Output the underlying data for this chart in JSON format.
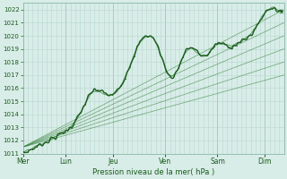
{
  "title": "",
  "xlabel": "Pression niveau de la mer( hPa )",
  "bg_color": "#d8ece8",
  "plot_bg_color": "#d8ece8",
  "grid_color": "#b8d8d0",
  "line_color_dark": "#1a5c1a",
  "line_color_mid": "#2e7d32",
  "ylim": [
    1011,
    1022.5
  ],
  "yticks": [
    1011,
    1012,
    1013,
    1014,
    1015,
    1016,
    1017,
    1018,
    1019,
    1020,
    1021,
    1022
  ],
  "day_labels": [
    "Mer",
    "Lun",
    "Jeu",
    "Ven",
    "Sam",
    "Dim"
  ],
  "fan_lines": [
    [
      1011.5,
      1017.0
    ],
    [
      1011.5,
      1018.0
    ],
    [
      1011.5,
      1019.0
    ],
    [
      1011.5,
      1020.0
    ],
    [
      1011.5,
      1021.0
    ],
    [
      1011.5,
      1022.0
    ]
  ],
  "xlim": [
    0,
    5.5
  ]
}
